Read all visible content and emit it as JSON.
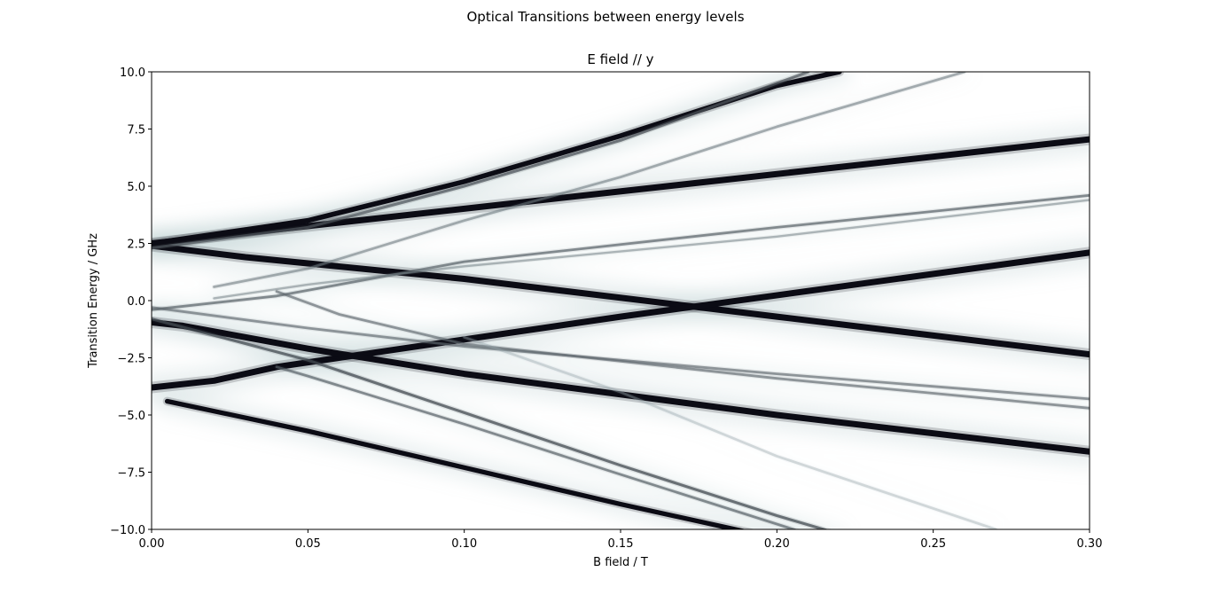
{
  "figure": {
    "suptitle": "Optical Transitions between energy levels"
  },
  "chart_data": {
    "type": "heatmap",
    "title": "E field // y",
    "xlabel": "B field / T",
    "ylabel": "Transition Energy / GHz",
    "xlim": [
      0.0,
      0.3
    ],
    "ylim": [
      -10.0,
      10.0
    ],
    "xticks": [
      "0.00",
      "0.05",
      "0.10",
      "0.15",
      "0.20",
      "0.25",
      "0.30"
    ],
    "yticks": [
      "−10.0",
      "−7.5",
      "−5.0",
      "−2.5",
      "0.0",
      "2.5",
      "5.0",
      "7.5",
      "10.0"
    ],
    "xtick_values": [
      0.0,
      0.05,
      0.1,
      0.15,
      0.2,
      0.25,
      0.3
    ],
    "ytick_values": [
      -10.0,
      -7.5,
      -5.0,
      -2.5,
      0.0,
      2.5,
      5.0,
      7.5,
      10.0
    ],
    "colormap": "bone_r",
    "colors": {
      "dark": "#0b0b14",
      "mid": "#5b6e78",
      "light": "#c9dcdc",
      "background": "#ffffff"
    },
    "series": [
      {
        "x": [
          0.0,
          0.3
        ],
        "y": [
          2.5,
          7.05
        ],
        "intensity": 1.0,
        "width": 1.0
      },
      {
        "x": [
          0.0,
          0.03,
          0.1,
          0.2,
          0.3
        ],
        "y": [
          2.4,
          1.9,
          0.95,
          -0.7,
          -2.35
        ],
        "intensity": 1.0,
        "width": 1.0
      },
      {
        "x": [
          0.0,
          0.02,
          0.04,
          0.07,
          0.15,
          0.3
        ],
        "y": [
          -3.8,
          -3.5,
          -2.9,
          -2.3,
          -0.7,
          2.1
        ],
        "intensity": 1.0,
        "width": 1.0
      },
      {
        "x": [
          0.0,
          0.01,
          0.05,
          0.1,
          0.2,
          0.3
        ],
        "y": [
          -0.95,
          -1.1,
          -2.1,
          -3.2,
          -5.0,
          -6.6
        ],
        "intensity": 1.0,
        "width": 1.0
      },
      {
        "x": [
          0.0,
          0.05,
          0.1,
          0.15,
          0.2,
          0.22
        ],
        "y": [
          2.5,
          3.5,
          5.2,
          7.2,
          9.4,
          10.0
        ],
        "intensity": 1.0,
        "width": 0.8
      },
      {
        "x": [
          0.005,
          0.05,
          0.1,
          0.15,
          0.2,
          0.22
        ],
        "y": [
          -4.4,
          -5.7,
          -7.3,
          -8.9,
          -10.4,
          -11.0
        ],
        "intensity": 1.0,
        "width": 0.75
      },
      {
        "x": [
          0.0,
          0.05,
          0.1,
          0.15,
          0.21
        ],
        "y": [
          2.3,
          3.2,
          5.0,
          7.0,
          10.0
        ],
        "intensity": 0.6,
        "width": 0.45
      },
      {
        "x": [
          0.02,
          0.05,
          0.1,
          0.15,
          0.2,
          0.26
        ],
        "y": [
          0.6,
          1.4,
          3.5,
          5.4,
          7.6,
          10.0
        ],
        "intensity": 0.4,
        "width": 0.4
      },
      {
        "x": [
          0.0,
          0.04,
          0.1,
          0.2,
          0.3
        ],
        "y": [
          -0.4,
          0.2,
          1.7,
          3.2,
          4.6
        ],
        "intensity": 0.55,
        "width": 0.4
      },
      {
        "x": [
          0.02,
          0.05,
          0.1,
          0.2,
          0.3
        ],
        "y": [
          0.1,
          0.7,
          1.5,
          2.8,
          4.4
        ],
        "intensity": 0.35,
        "width": 0.35
      },
      {
        "x": [
          0.0,
          0.05,
          0.1,
          0.2,
          0.3
        ],
        "y": [
          -0.3,
          -1.2,
          -2.0,
          -3.2,
          -4.3
        ],
        "intensity": 0.5,
        "width": 0.4
      },
      {
        "x": [
          0.04,
          0.06,
          0.1,
          0.2,
          0.3
        ],
        "y": [
          0.4,
          -0.6,
          -1.9,
          -3.4,
          -4.7
        ],
        "intensity": 0.5,
        "width": 0.4
      },
      {
        "x": [
          0.0,
          0.05,
          0.1,
          0.15,
          0.2,
          0.22
        ],
        "y": [
          -0.8,
          -2.6,
          -4.9,
          -7.2,
          -9.4,
          -10.2
        ],
        "intensity": 0.65,
        "width": 0.45
      },
      {
        "x": [
          0.04,
          0.05,
          0.1,
          0.15,
          0.21
        ],
        "y": [
          -2.9,
          -3.3,
          -5.4,
          -7.6,
          -10.2
        ],
        "intensity": 0.55,
        "width": 0.4
      },
      {
        "x": [
          0.1,
          0.15,
          0.2,
          0.27
        ],
        "y": [
          -1.6,
          -4.0,
          -6.8,
          -10.0
        ],
        "intensity": 0.15,
        "width": 0.4
      }
    ]
  }
}
